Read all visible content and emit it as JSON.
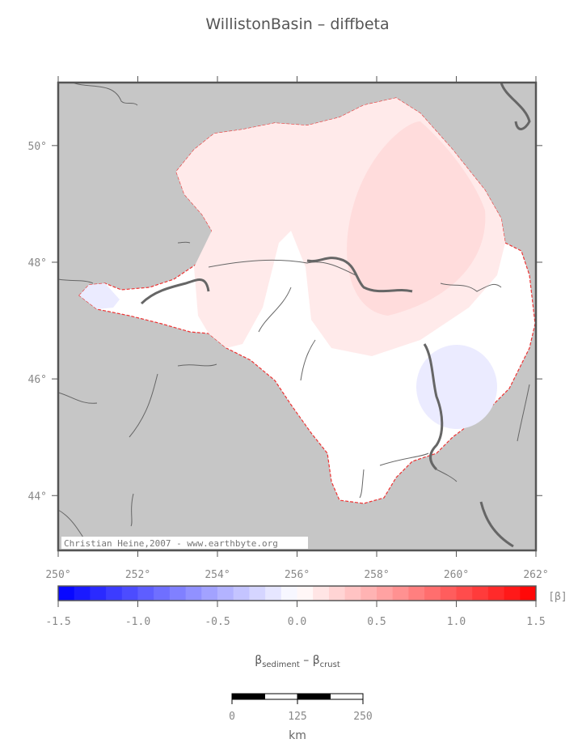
{
  "title": "WillistonBasin – diffbeta",
  "map": {
    "lon_range": [
      250,
      262
    ],
    "lat_range": [
      43.06,
      51.08
    ],
    "lon_ticks": [
      {
        "value": 250,
        "label": "250°"
      },
      {
        "value": 252,
        "label": "252°"
      },
      {
        "value": 254,
        "label": "254°"
      },
      {
        "value": 256,
        "label": "256°"
      },
      {
        "value": 258,
        "label": "258°"
      },
      {
        "value": 260,
        "label": "260°"
      },
      {
        "value": 262,
        "label": "262°"
      }
    ],
    "lat_ticks": [
      {
        "value": 50,
        "label": "50°"
      },
      {
        "value": 48,
        "label": "48°"
      },
      {
        "value": 46,
        "label": "46°"
      },
      {
        "value": 44,
        "label": "44°"
      }
    ],
    "credit": "Christian Heine,2007 - www.earthbyte.org"
  },
  "colorbar": {
    "range": [
      -1.5,
      1.5
    ],
    "step": 0.1,
    "ticks": [
      {
        "value": -1.5,
        "label": "-1.5"
      },
      {
        "value": -1,
        "label": "-1.0"
      },
      {
        "value": -0.5,
        "label": "-0.5"
      },
      {
        "value": 0,
        "label": "0.0"
      },
      {
        "value": 0.5,
        "label": "0.5"
      },
      {
        "value": 1,
        "label": "1.0"
      },
      {
        "value": 1.5,
        "label": "1.5"
      }
    ],
    "unit": "[β]",
    "label": {
      "symbol1": "β",
      "sub1": "sediment",
      "sep": " – ",
      "symbol2": "β",
      "sub2": "crust"
    }
  },
  "scalebar": {
    "ticks": [
      0,
      125,
      250
    ],
    "unit": "km"
  }
}
